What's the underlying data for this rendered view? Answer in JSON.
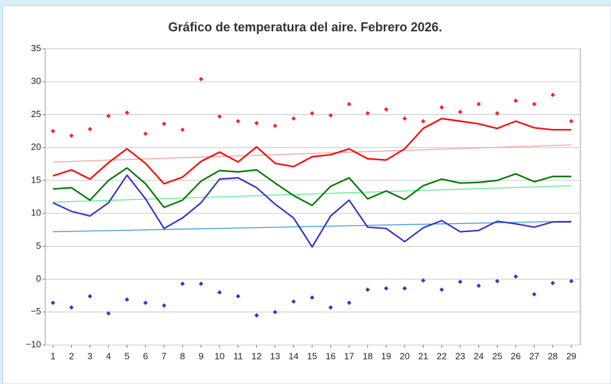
{
  "chart_data": {
    "type": "line",
    "title": "Gráfico de temperatura del aire. Febrero 2026.",
    "categories": [
      "1",
      "2",
      "3",
      "4",
      "5",
      "6",
      "7",
      "8",
      "9",
      "10",
      "11",
      "12",
      "13",
      "14",
      "15",
      "16",
      "17",
      "18",
      "19",
      "20",
      "21",
      "22",
      "23",
      "24",
      "25",
      "26",
      "27",
      "28",
      "29"
    ],
    "ylim": [
      -10,
      35
    ],
    "yticks": [
      {
        "value": -10,
        "label": "−10"
      },
      {
        "value": -5,
        "label": "−5"
      },
      0,
      5,
      10,
      15,
      20,
      25,
      30,
      35
    ],
    "grid": true,
    "series": [
      {
        "color": "#ff0000",
        "style": "line",
        "values": [
          15.7,
          16.6,
          15.2,
          17.7,
          19.8,
          17.6,
          14.5,
          15.5,
          17.9,
          19.3,
          17.8,
          20.1,
          17.6,
          17.1,
          18.6,
          18.9,
          19.8,
          18.3,
          18.1,
          19.8,
          22.9,
          24.4,
          24.0,
          23.6,
          22.9,
          24.0,
          23.0,
          22.7,
          22.7
        ]
      },
      {
        "color": "#007700",
        "style": "line",
        "values": [
          13.7,
          13.9,
          12.0,
          15.0,
          16.9,
          14.5,
          10.9,
          12.0,
          14.9,
          16.5,
          16.3,
          16.6,
          14.6,
          12.7,
          11.2,
          14.1,
          15.4,
          12.2,
          13.4,
          12.1,
          14.2,
          15.2,
          14.6,
          14.7,
          15.0,
          16.0,
          14.8,
          15.6,
          15.6
        ]
      },
      {
        "color": "#3535c8",
        "style": "line",
        "values": [
          11.6,
          10.3,
          9.6,
          11.6,
          15.8,
          12.2,
          7.7,
          9.3,
          11.6,
          15.2,
          15.4,
          13.9,
          11.4,
          9.3,
          4.9,
          9.6,
          12.0,
          7.9,
          7.7,
          5.7,
          7.8,
          8.9,
          7.2,
          7.4,
          8.8,
          8.4,
          7.9,
          8.7,
          8.7
        ]
      },
      {
        "color": "#ff2020",
        "style": "marker",
        "values": [
          22.5,
          21.8,
          22.8,
          24.8,
          25.3,
          22.1,
          23.6,
          22.7,
          30.4,
          24.7,
          24.0,
          23.7,
          23.3,
          24.4,
          25.2,
          24.9,
          26.6,
          25.2,
          25.8,
          24.4,
          24.0,
          26.1,
          25.4,
          26.6,
          25.2,
          27.1,
          26.6,
          28.0,
          24.0
        ]
      },
      {
        "color": "#3535c8",
        "style": "marker",
        "values": [
          -3.6,
          -4.3,
          -2.6,
          -5.2,
          -3.1,
          -3.6,
          -4.0,
          -0.7,
          -0.7,
          -2.0,
          -2.6,
          -5.5,
          -5.0,
          -3.4,
          -2.8,
          -4.3,
          -3.6,
          -1.6,
          -1.4,
          -1.4,
          -0.2,
          -1.6,
          -0.4,
          -1.0,
          -0.3,
          0.4,
          -2.3,
          -0.6,
          -0.3
        ]
      }
    ],
    "trendlines": [
      {
        "color": "#ff9999",
        "start": 17.8,
        "end": 20.4
      },
      {
        "color": "#55ee88",
        "start": 11.7,
        "end": 14.2
      },
      {
        "color": "#3399dd",
        "start": 7.2,
        "end": 8.8
      }
    ]
  }
}
